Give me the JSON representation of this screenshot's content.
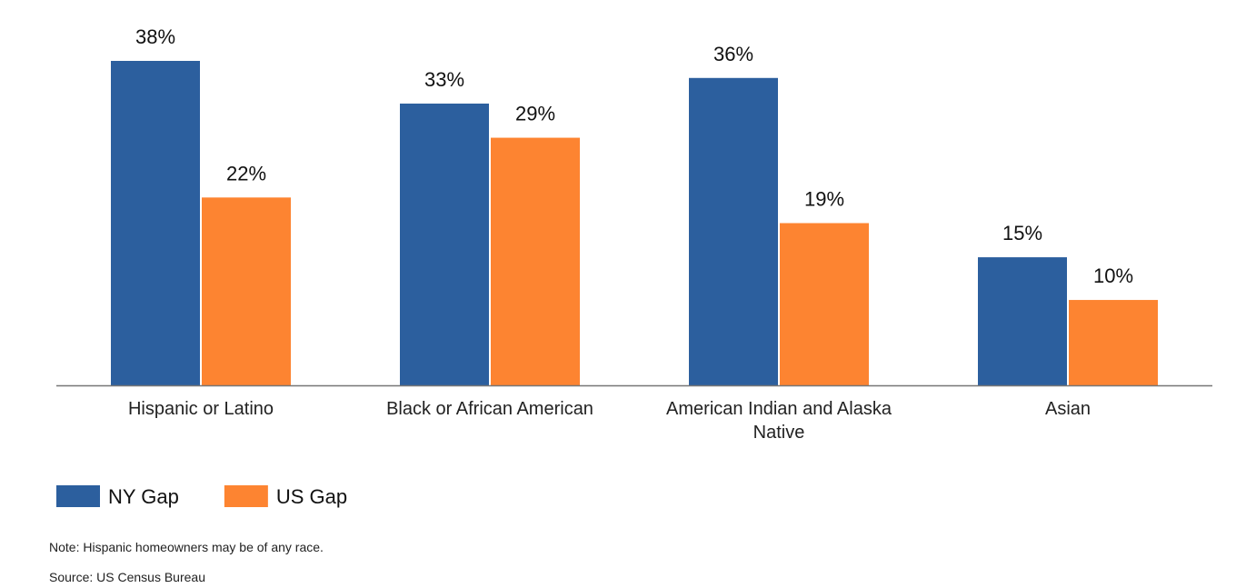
{
  "chart_data": {
    "type": "bar",
    "categories": [
      "Hispanic or Latino",
      "Black or African American",
      "American Indian and Alaska Native",
      "Asian"
    ],
    "series": [
      {
        "name": "NY Gap",
        "color": "#2c5f9e",
        "values": [
          38,
          33,
          36,
          15
        ],
        "value_labels": [
          "38%",
          "33%",
          "36%",
          "15%"
        ]
      },
      {
        "name": "US Gap",
        "color": "#fd8431",
        "values": [
          22,
          29,
          19,
          10
        ],
        "value_labels": [
          "22%",
          "29%",
          "19%",
          "10%"
        ]
      }
    ]
  },
  "note": "Note: Hispanic homeowners may be of any race.",
  "source": "Source: US Census Bureau"
}
